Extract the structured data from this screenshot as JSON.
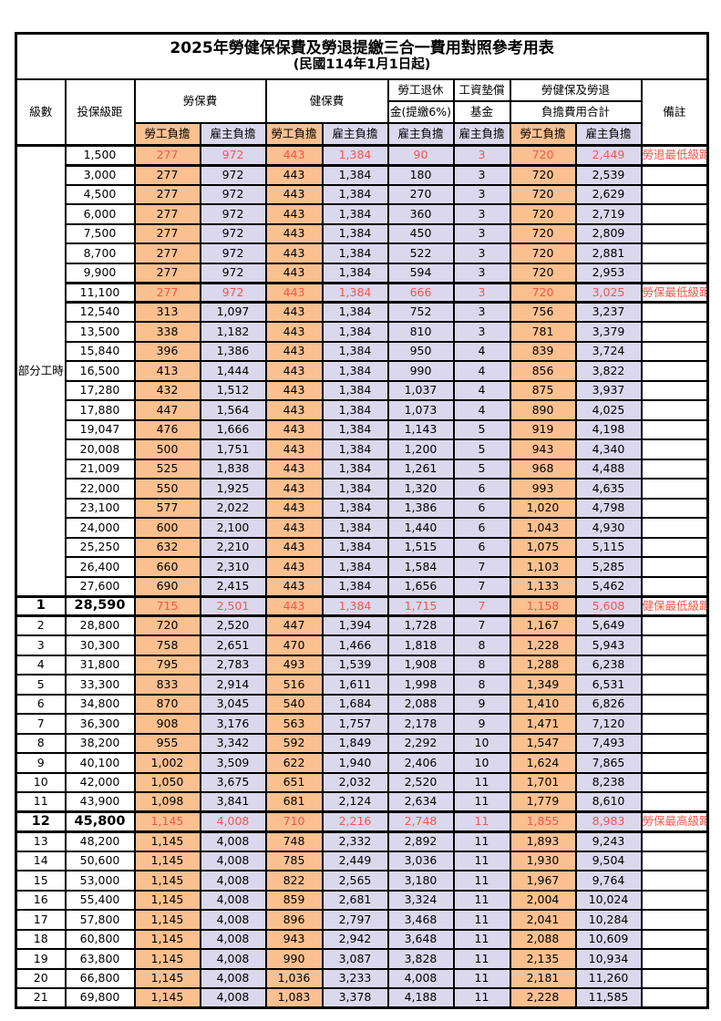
{
  "title": "2025年勞健保保費及勞退提繳三合一費用對照參考用表",
  "subtitle": "(民國114年1月1日起)",
  "colors": {
    "employee_bg": "#FAC090",
    "employer_bg": "#DBD8EE",
    "highlight_red": "#F4564E",
    "border": "#000000"
  },
  "header": {
    "level": "級數",
    "bracket": "投保級距",
    "labor_insurance": "勞保費",
    "health_insurance": "健保費",
    "pension_line1": "勞工退休",
    "pension_line2": "金(提繳6%)",
    "wage_fund_line1": "工資墊償",
    "wage_fund_line2": "基金",
    "total_line1": "勞健保及勞退",
    "total_line2": "負擔費用合計",
    "note": "備註",
    "employee_burden": "勞工負擔",
    "employer_burden": "雇主負擔"
  },
  "part_time": {
    "label": "部分工時",
    "rowspan": 23
  },
  "rows": [
    {
      "level": "",
      "bracket": "1,500",
      "values": [
        "277",
        "972",
        "443",
        "1,384",
        "90",
        "3",
        "720",
        "2,449"
      ],
      "note": "勞退最低級距",
      "hl": true,
      "em": false
    },
    {
      "level": "",
      "bracket": "3,000",
      "values": [
        "277",
        "972",
        "443",
        "1,384",
        "180",
        "3",
        "720",
        "2,539"
      ],
      "note": "",
      "hl": false,
      "em": false
    },
    {
      "level": "",
      "bracket": "4,500",
      "values": [
        "277",
        "972",
        "443",
        "1,384",
        "270",
        "3",
        "720",
        "2,629"
      ],
      "note": "",
      "hl": false,
      "em": false
    },
    {
      "level": "",
      "bracket": "6,000",
      "values": [
        "277",
        "972",
        "443",
        "1,384",
        "360",
        "3",
        "720",
        "2,719"
      ],
      "note": "",
      "hl": false,
      "em": false
    },
    {
      "level": "",
      "bracket": "7,500",
      "values": [
        "277",
        "972",
        "443",
        "1,384",
        "450",
        "3",
        "720",
        "2,809"
      ],
      "note": "",
      "hl": false,
      "em": false
    },
    {
      "level": "",
      "bracket": "8,700",
      "values": [
        "277",
        "972",
        "443",
        "1,384",
        "522",
        "3",
        "720",
        "2,881"
      ],
      "note": "",
      "hl": false,
      "em": false
    },
    {
      "level": "",
      "bracket": "9,900",
      "values": [
        "277",
        "972",
        "443",
        "1,384",
        "594",
        "3",
        "720",
        "2,953"
      ],
      "note": "",
      "hl": false,
      "em": false
    },
    {
      "level": "",
      "bracket": "11,100",
      "values": [
        "277",
        "972",
        "443",
        "1,384",
        "666",
        "3",
        "720",
        "3,025"
      ],
      "note": "勞保最低級距",
      "hl": true,
      "em": false
    },
    {
      "level": "",
      "bracket": "12,540",
      "values": [
        "313",
        "1,097",
        "443",
        "1,384",
        "752",
        "3",
        "756",
        "3,237"
      ],
      "note": "",
      "hl": false,
      "em": false
    },
    {
      "level": "",
      "bracket": "13,500",
      "values": [
        "338",
        "1,182",
        "443",
        "1,384",
        "810",
        "3",
        "781",
        "3,379"
      ],
      "note": "",
      "hl": false,
      "em": false
    },
    {
      "level": "",
      "bracket": "15,840",
      "values": [
        "396",
        "1,386",
        "443",
        "1,384",
        "950",
        "4",
        "839",
        "3,724"
      ],
      "note": "",
      "hl": false,
      "em": false
    },
    {
      "level": "",
      "bracket": "16,500",
      "values": [
        "413",
        "1,444",
        "443",
        "1,384",
        "990",
        "4",
        "856",
        "3,822"
      ],
      "note": "",
      "hl": false,
      "em": false
    },
    {
      "level": "",
      "bracket": "17,280",
      "values": [
        "432",
        "1,512",
        "443",
        "1,384",
        "1,037",
        "4",
        "875",
        "3,937"
      ],
      "note": "",
      "hl": false,
      "em": false
    },
    {
      "level": "",
      "bracket": "17,880",
      "values": [
        "447",
        "1,564",
        "443",
        "1,384",
        "1,073",
        "4",
        "890",
        "4,025"
      ],
      "note": "",
      "hl": false,
      "em": false
    },
    {
      "level": "",
      "bracket": "19,047",
      "values": [
        "476",
        "1,666",
        "443",
        "1,384",
        "1,143",
        "5",
        "919",
        "4,198"
      ],
      "note": "",
      "hl": false,
      "em": false
    },
    {
      "level": "",
      "bracket": "20,008",
      "values": [
        "500",
        "1,751",
        "443",
        "1,384",
        "1,200",
        "5",
        "943",
        "4,340"
      ],
      "note": "",
      "hl": false,
      "em": false
    },
    {
      "level": "",
      "bracket": "21,009",
      "values": [
        "525",
        "1,838",
        "443",
        "1,384",
        "1,261",
        "5",
        "968",
        "4,488"
      ],
      "note": "",
      "hl": false,
      "em": false
    },
    {
      "level": "",
      "bracket": "22,000",
      "values": [
        "550",
        "1,925",
        "443",
        "1,384",
        "1,320",
        "6",
        "993",
        "4,635"
      ],
      "note": "",
      "hl": false,
      "em": false
    },
    {
      "level": "",
      "bracket": "23,100",
      "values": [
        "577",
        "2,022",
        "443",
        "1,384",
        "1,386",
        "6",
        "1,020",
        "4,798"
      ],
      "note": "",
      "hl": false,
      "em": false
    },
    {
      "level": "",
      "bracket": "24,000",
      "values": [
        "600",
        "2,100",
        "443",
        "1,384",
        "1,440",
        "6",
        "1,043",
        "4,930"
      ],
      "note": "",
      "hl": false,
      "em": false
    },
    {
      "level": "",
      "bracket": "25,250",
      "values": [
        "632",
        "2,210",
        "443",
        "1,384",
        "1,515",
        "6",
        "1,075",
        "5,115"
      ],
      "note": "",
      "hl": false,
      "em": false
    },
    {
      "level": "",
      "bracket": "26,400",
      "values": [
        "660",
        "2,310",
        "443",
        "1,384",
        "1,584",
        "7",
        "1,103",
        "5,285"
      ],
      "note": "",
      "hl": false,
      "em": false
    },
    {
      "level": "",
      "bracket": "27,600",
      "values": [
        "690",
        "2,415",
        "443",
        "1,384",
        "1,656",
        "7",
        "1,133",
        "5,462"
      ],
      "note": "",
      "hl": false,
      "em": false
    },
    {
      "level": "1",
      "bracket": "28,590",
      "values": [
        "715",
        "2,501",
        "443",
        "1,384",
        "1,715",
        "7",
        "1,158",
        "5,608"
      ],
      "note": "健保最低級距",
      "hl": true,
      "em": true
    },
    {
      "level": "2",
      "bracket": "28,800",
      "values": [
        "720",
        "2,520",
        "447",
        "1,394",
        "1,728",
        "7",
        "1,167",
        "5,649"
      ],
      "note": "",
      "hl": false,
      "em": false
    },
    {
      "level": "3",
      "bracket": "30,300",
      "values": [
        "758",
        "2,651",
        "470",
        "1,466",
        "1,818",
        "8",
        "1,228",
        "5,943"
      ],
      "note": "",
      "hl": false,
      "em": false
    },
    {
      "level": "4",
      "bracket": "31,800",
      "values": [
        "795",
        "2,783",
        "493",
        "1,539",
        "1,908",
        "8",
        "1,288",
        "6,238"
      ],
      "note": "",
      "hl": false,
      "em": false
    },
    {
      "level": "5",
      "bracket": "33,300",
      "values": [
        "833",
        "2,914",
        "516",
        "1,611",
        "1,998",
        "8",
        "1,349",
        "6,531"
      ],
      "note": "",
      "hl": false,
      "em": false
    },
    {
      "level": "6",
      "bracket": "34,800",
      "values": [
        "870",
        "3,045",
        "540",
        "1,684",
        "2,088",
        "9",
        "1,410",
        "6,826"
      ],
      "note": "",
      "hl": false,
      "em": false
    },
    {
      "level": "7",
      "bracket": "36,300",
      "values": [
        "908",
        "3,176",
        "563",
        "1,757",
        "2,178",
        "9",
        "1,471",
        "7,120"
      ],
      "note": "",
      "hl": false,
      "em": false
    },
    {
      "level": "8",
      "bracket": "38,200",
      "values": [
        "955",
        "3,342",
        "592",
        "1,849",
        "2,292",
        "10",
        "1,547",
        "7,493"
      ],
      "note": "",
      "hl": false,
      "em": false
    },
    {
      "level": "9",
      "bracket": "40,100",
      "values": [
        "1,002",
        "3,509",
        "622",
        "1,940",
        "2,406",
        "10",
        "1,624",
        "7,865"
      ],
      "note": "",
      "hl": false,
      "em": false
    },
    {
      "level": "10",
      "bracket": "42,000",
      "values": [
        "1,050",
        "3,675",
        "651",
        "2,032",
        "2,520",
        "11",
        "1,701",
        "8,238"
      ],
      "note": "",
      "hl": false,
      "em": false
    },
    {
      "level": "11",
      "bracket": "43,900",
      "values": [
        "1,098",
        "3,841",
        "681",
        "2,124",
        "2,634",
        "11",
        "1,779",
        "8,610"
      ],
      "note": "",
      "hl": false,
      "em": false
    },
    {
      "level": "12",
      "bracket": "45,800",
      "values": [
        "1,145",
        "4,008",
        "710",
        "2,216",
        "2,748",
        "11",
        "1,855",
        "8,983"
      ],
      "note": "勞保最高級距",
      "hl": true,
      "em": true
    },
    {
      "level": "13",
      "bracket": "48,200",
      "values": [
        "1,145",
        "4,008",
        "748",
        "2,332",
        "2,892",
        "11",
        "1,893",
        "9,243"
      ],
      "note": "",
      "hl": false,
      "em": false
    },
    {
      "level": "14",
      "bracket": "50,600",
      "values": [
        "1,145",
        "4,008",
        "785",
        "2,449",
        "3,036",
        "11",
        "1,930",
        "9,504"
      ],
      "note": "",
      "hl": false,
      "em": false
    },
    {
      "level": "15",
      "bracket": "53,000",
      "values": [
        "1,145",
        "4,008",
        "822",
        "2,565",
        "3,180",
        "11",
        "1,967",
        "9,764"
      ],
      "note": "",
      "hl": false,
      "em": false
    },
    {
      "level": "16",
      "bracket": "55,400",
      "values": [
        "1,145",
        "4,008",
        "859",
        "2,681",
        "3,324",
        "11",
        "2,004",
        "10,024"
      ],
      "note": "",
      "hl": false,
      "em": false
    },
    {
      "level": "17",
      "bracket": "57,800",
      "values": [
        "1,145",
        "4,008",
        "896",
        "2,797",
        "3,468",
        "11",
        "2,041",
        "10,284"
      ],
      "note": "",
      "hl": false,
      "em": false
    },
    {
      "level": "18",
      "bracket": "60,800",
      "values": [
        "1,145",
        "4,008",
        "943",
        "2,942",
        "3,648",
        "11",
        "2,088",
        "10,609"
      ],
      "note": "",
      "hl": false,
      "em": false
    },
    {
      "level": "19",
      "bracket": "63,800",
      "values": [
        "1,145",
        "4,008",
        "990",
        "3,087",
        "3,828",
        "11",
        "2,135",
        "10,934"
      ],
      "note": "",
      "hl": false,
      "em": false
    },
    {
      "level": "20",
      "bracket": "66,800",
      "values": [
        "1,145",
        "4,008",
        "1,036",
        "3,233",
        "4,008",
        "11",
        "2,181",
        "11,260"
      ],
      "note": "",
      "hl": false,
      "em": false
    },
    {
      "level": "21",
      "bracket": "69,800",
      "values": [
        "1,145",
        "4,008",
        "1,083",
        "3,378",
        "4,188",
        "11",
        "2,228",
        "11,585"
      ],
      "note": "",
      "hl": false,
      "em": false
    }
  ]
}
